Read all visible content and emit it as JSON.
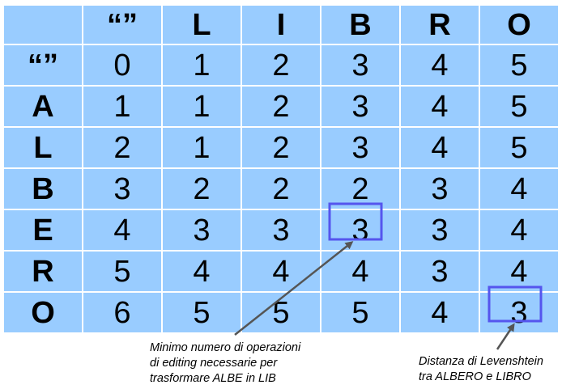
{
  "matrix": {
    "column_headers": [
      "“”",
      "L",
      "I",
      "B",
      "R",
      "O"
    ],
    "rows": [
      {
        "label": "“”",
        "values": [
          "0",
          "1",
          "2",
          "3",
          "4",
          "5"
        ]
      },
      {
        "label": "A",
        "values": [
          "1",
          "1",
          "2",
          "3",
          "4",
          "5"
        ]
      },
      {
        "label": "L",
        "values": [
          "2",
          "1",
          "2",
          "3",
          "4",
          "5"
        ]
      },
      {
        "label": "B",
        "values": [
          "3",
          "2",
          "2",
          "2",
          "3",
          "4"
        ]
      },
      {
        "label": "E",
        "values": [
          "4",
          "3",
          "3",
          "3",
          "3",
          "4"
        ]
      },
      {
        "label": "R",
        "values": [
          "5",
          "4",
          "4",
          "4",
          "3",
          "4"
        ]
      },
      {
        "label": "O",
        "values": [
          "6",
          "5",
          "5",
          "5",
          "4",
          "3"
        ]
      }
    ]
  },
  "highlights": [
    {
      "row": 4,
      "col": 3
    },
    {
      "row": 6,
      "col": 5
    }
  ],
  "annotations": {
    "minimo": [
      "Minimo numero di operazioni",
      "di editing necessarie per",
      "trasformare ALBE in LIB"
    ],
    "distanza": [
      "Distanza di Levenshtein",
      "tra ALBERO e LIBRO"
    ]
  },
  "colors": {
    "cell_background": "#99ccff",
    "highlight_border": "#5555ee",
    "arrow": "#555555"
  }
}
